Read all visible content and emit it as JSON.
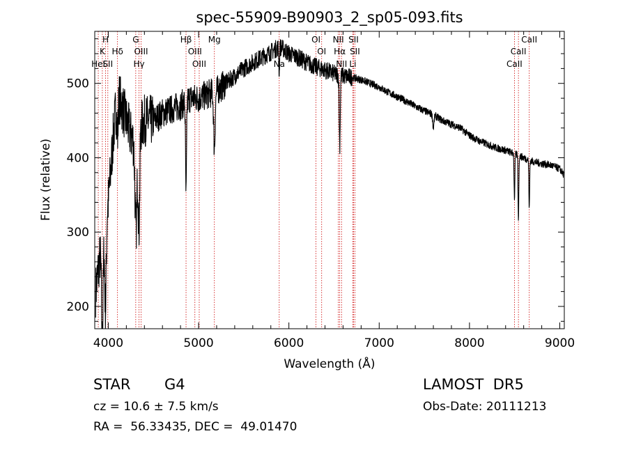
{
  "chart_data": {
    "type": "line",
    "title": "spec-55909-B90903_2_sp05-093.fits",
    "xlabel": "Wavelength (Å)",
    "ylabel": "Flux (relative)",
    "xlim": [
      3850,
      9050
    ],
    "ylim": [
      170,
      570
    ],
    "xticks": [
      4000,
      5000,
      6000,
      7000,
      8000,
      9000
    ],
    "yticks": [
      200,
      300,
      400,
      500
    ],
    "grid": false,
    "line_color": "#000000",
    "marker_color": "#cc0000",
    "continuum": [
      [
        3860,
        220
      ],
      [
        3900,
        260
      ],
      [
        3950,
        300
      ],
      [
        4000,
        340
      ],
      [
        4050,
        420
      ],
      [
        4100,
        490
      ],
      [
        4150,
        470
      ],
      [
        4200,
        450
      ],
      [
        4250,
        430
      ],
      [
        4300,
        420
      ],
      [
        4350,
        440
      ],
      [
        4400,
        450
      ],
      [
        4500,
        450
      ],
      [
        4600,
        460
      ],
      [
        4700,
        465
      ],
      [
        4800,
        470
      ],
      [
        4900,
        480
      ],
      [
        5000,
        480
      ],
      [
        5100,
        485
      ],
      [
        5200,
        490
      ],
      [
        5300,
        500
      ],
      [
        5400,
        510
      ],
      [
        5500,
        520
      ],
      [
        5600,
        528
      ],
      [
        5700,
        535
      ],
      [
        5800,
        542
      ],
      [
        5900,
        550
      ],
      [
        6000,
        540
      ],
      [
        6100,
        535
      ],
      [
        6200,
        528
      ],
      [
        6300,
        522
      ],
      [
        6400,
        518
      ],
      [
        6500,
        513
      ],
      [
        6600,
        510
      ],
      [
        6700,
        508
      ],
      [
        6800,
        505
      ],
      [
        6900,
        500
      ],
      [
        7000,
        495
      ],
      [
        7100,
        488
      ],
      [
        7200,
        482
      ],
      [
        7300,
        476
      ],
      [
        7400,
        469
      ],
      [
        7500,
        463
      ],
      [
        7600,
        458
      ],
      [
        7700,
        450
      ],
      [
        7800,
        445
      ],
      [
        7900,
        440
      ],
      [
        8000,
        430
      ],
      [
        8100,
        423
      ],
      [
        8200,
        418
      ],
      [
        8300,
        413
      ],
      [
        8400,
        410
      ],
      [
        8500,
        405
      ],
      [
        8600,
        400
      ],
      [
        8700,
        395
      ],
      [
        8800,
        392
      ],
      [
        8900,
        390
      ],
      [
        9000,
        385
      ],
      [
        9040,
        378
      ]
    ],
    "absorption": [
      {
        "x": 3934,
        "depth": 140,
        "width": 12
      },
      {
        "x": 3969,
        "depth": 120,
        "width": 12
      },
      {
        "x": 4102,
        "depth": 60,
        "width": 10
      },
      {
        "x": 4307,
        "depth": 120,
        "width": 16
      },
      {
        "x": 4340,
        "depth": 130,
        "width": 12
      },
      {
        "x": 4861,
        "depth": 130,
        "width": 8
      },
      {
        "x": 5175,
        "depth": 75,
        "width": 12
      },
      {
        "x": 5893,
        "depth": 35,
        "width": 6
      },
      {
        "x": 6563,
        "depth": 95,
        "width": 8
      },
      {
        "x": 7600,
        "depth": 18,
        "width": 10
      },
      {
        "x": 8498,
        "depth": 60,
        "width": 6
      },
      {
        "x": 8542,
        "depth": 85,
        "width": 6
      },
      {
        "x": 8662,
        "depth": 65,
        "width": 6
      }
    ],
    "line_markers": [
      {
        "x": 3934,
        "label": "K",
        "row": 2
      },
      {
        "x": 3970,
        "label": "H",
        "row": 1
      },
      {
        "x": 3889,
        "label": "HeI",
        "row": 3
      },
      {
        "x": 3995,
        "label": "SII",
        "row": 3
      },
      {
        "x": 4102,
        "label": "Hδ",
        "row": 2
      },
      {
        "x": 4304,
        "label": "G",
        "row": 1
      },
      {
        "x": 4363,
        "label": "OIII",
        "row": 2
      },
      {
        "x": 4340,
        "label": "Hγ",
        "row": 3
      },
      {
        "x": 4861,
        "label": "Hβ",
        "row": 1
      },
      {
        "x": 4959,
        "label": "OIII",
        "row": 2
      },
      {
        "x": 5007,
        "label": "OIII",
        "row": 3
      },
      {
        "x": 5175,
        "label": "Mg",
        "row": 1
      },
      {
        "x": 5893,
        "label": "Na",
        "row": 3
      },
      {
        "x": 6300,
        "label": "OI",
        "row": 1
      },
      {
        "x": 6363,
        "label": "OI",
        "row": 2
      },
      {
        "x": 6548,
        "label": "NII",
        "row": 1
      },
      {
        "x": 6563,
        "label": "Hα",
        "row": 2
      },
      {
        "x": 6583,
        "label": "NII",
        "row": 3
      },
      {
        "x": 6716,
        "label": "SII",
        "row": 1
      },
      {
        "x": 6731,
        "label": "SII",
        "row": 2
      },
      {
        "x": 6708,
        "label": "Li",
        "row": 3
      },
      {
        "x": 8498,
        "label": "CaII",
        "row": 3
      },
      {
        "x": 8542,
        "label": "CaII",
        "row": 2
      },
      {
        "x": 8662,
        "label": "CaII",
        "row": 1
      }
    ]
  },
  "info": {
    "object_class": "STAR",
    "subclass": "G4",
    "cz": "cz = 10.6 ± 7.5 km/s",
    "radec": "RA =  56.33435, DEC =  49.01470",
    "survey": "LAMOST  DR5",
    "obs_date": "Obs-Date: 20111213"
  }
}
